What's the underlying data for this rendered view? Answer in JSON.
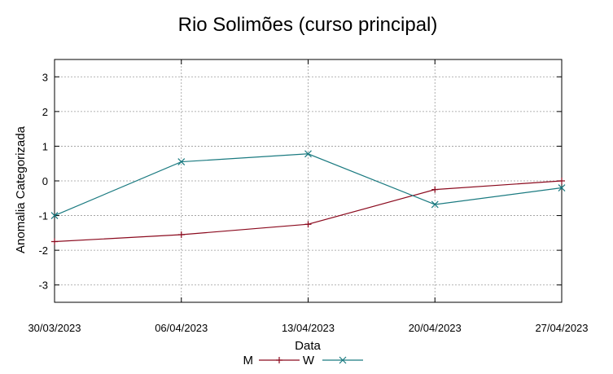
{
  "chart_data": {
    "type": "line",
    "title": "Rio Solimões (curso principal)",
    "xlabel": "Data",
    "ylabel": "Anomalia Categorizada",
    "categories": [
      "30/03/2023",
      "06/04/2023",
      "13/04/2023",
      "20/04/2023",
      "27/04/2023"
    ],
    "ylim": [
      -3.5,
      3.5
    ],
    "yticks": [
      3,
      2,
      1,
      0,
      -1,
      -2,
      -3
    ],
    "ytick_labels": [
      "3",
      "2",
      "1",
      "0",
      "-1",
      "-2",
      "-3"
    ],
    "grid": true,
    "legend_position": "bottom-center",
    "series": [
      {
        "name": "M",
        "color": "#8b0a1e",
        "marker": "plus",
        "values": [
          -1.75,
          -1.55,
          -1.25,
          -0.25,
          0.0
        ]
      },
      {
        "name": "W",
        "color": "#1a7a80",
        "marker": "cross",
        "values": [
          -1.0,
          0.55,
          0.78,
          -0.68,
          -0.2
        ]
      }
    ]
  }
}
